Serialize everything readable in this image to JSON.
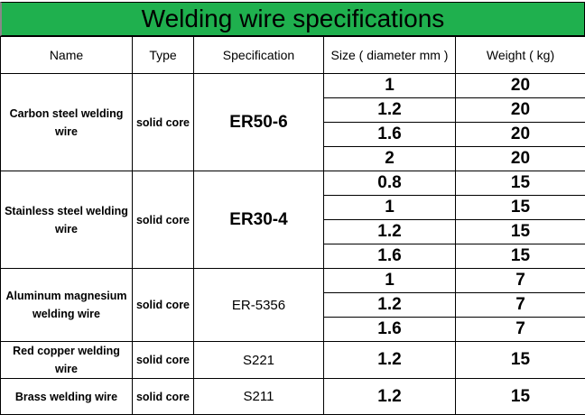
{
  "title": "Welding wire specifications",
  "colors": {
    "title_bg": "#1fb04e"
  },
  "headers": [
    "Name",
    "Type",
    "Specification",
    "Size ( diameter mm )",
    "Weight ( kg)"
  ],
  "groups": [
    {
      "name": "Carbon steel welding wire",
      "type": "solid core",
      "spec": "ER50-6",
      "rows": [
        {
          "size": "1",
          "weight": "20"
        },
        {
          "size": "1.2",
          "weight": "20"
        },
        {
          "size": "1.6",
          "weight": "20"
        },
        {
          "size": "2",
          "weight": "20"
        }
      ]
    },
    {
      "name": "Stainless steel welding wire",
      "type": "solid core",
      "spec": "ER30-4",
      "rows": [
        {
          "size": "0.8",
          "weight": "15"
        },
        {
          "size": "1",
          "weight": "15"
        },
        {
          "size": "1.2",
          "weight": "15"
        },
        {
          "size": "1.6",
          "weight": "15"
        }
      ]
    },
    {
      "name": "Aluminum magnesium welding wire",
      "type": "solid core",
      "spec": "ER-5356",
      "rows": [
        {
          "size": "1",
          "weight": "7"
        },
        {
          "size": "1.2",
          "weight": "7"
        },
        {
          "size": "1.6",
          "weight": "7"
        }
      ]
    },
    {
      "name": "Red copper welding wire",
      "type": "solid core",
      "spec": "S221",
      "rows": [
        {
          "size": "1.2",
          "weight": "15"
        }
      ]
    },
    {
      "name": "Brass welding wire",
      "type": "solid core",
      "spec": "S211",
      "rows": [
        {
          "size": "1.2",
          "weight": "15"
        }
      ]
    }
  ]
}
